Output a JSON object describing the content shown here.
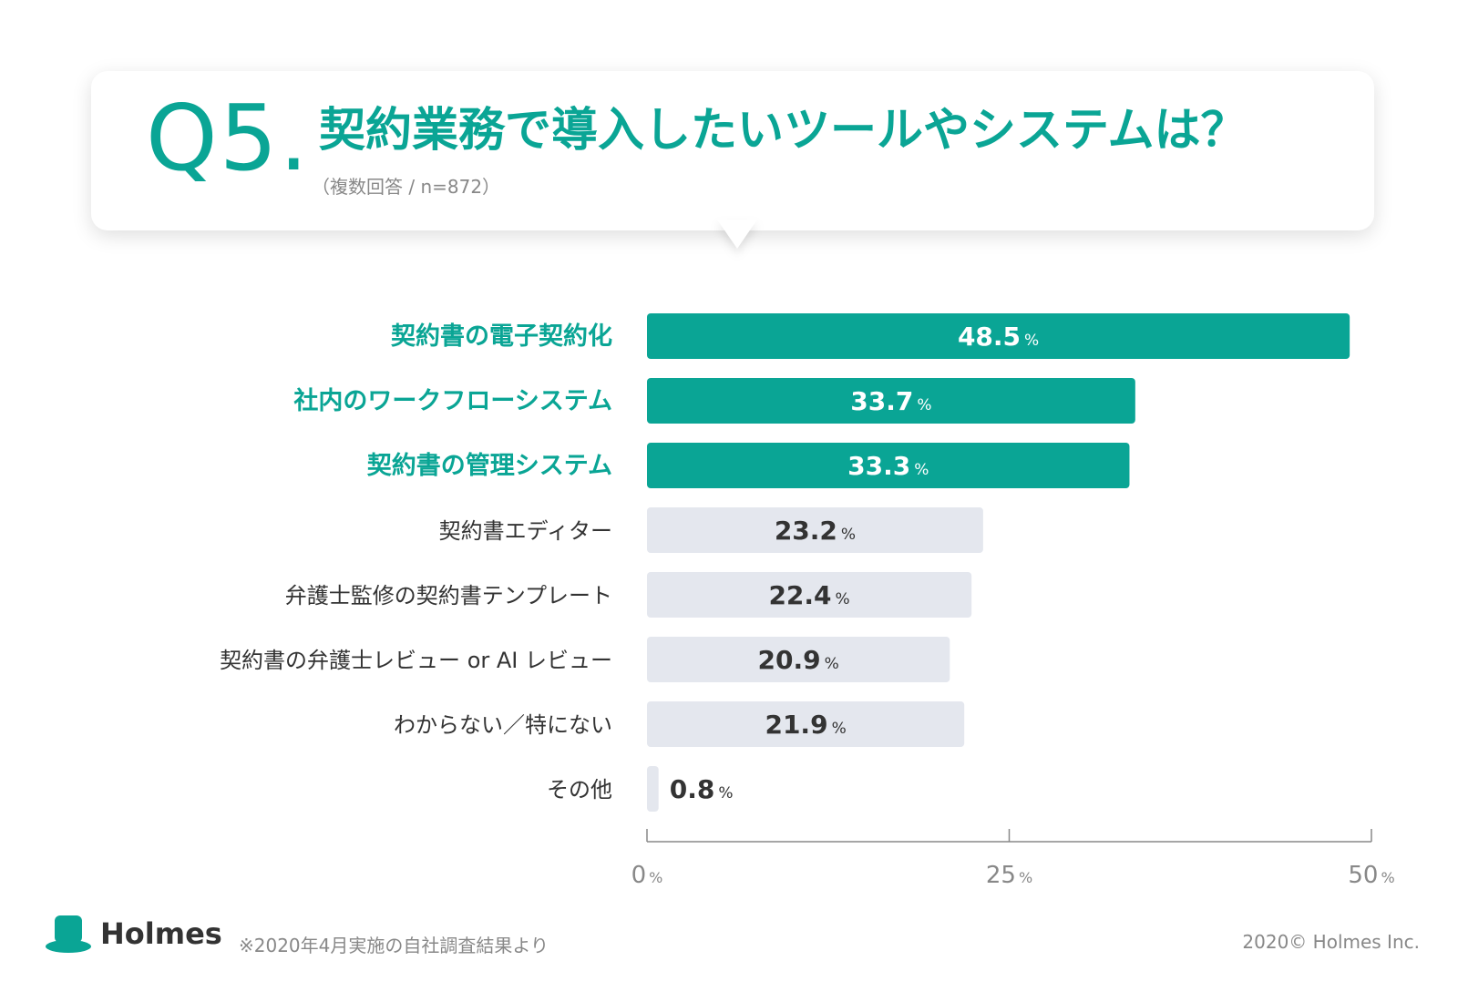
{
  "title": {
    "number": "Q5.",
    "question": "契約業務で導入したいツールやシステムは？",
    "subtitle": "（複数回答 / n=872）"
  },
  "colors": {
    "accent": "#0aa595",
    "bar_highlight": "#0aa595",
    "bar_normal": "#e4e7ee",
    "label_normal": "#333333",
    "axis": "#888888"
  },
  "chart_data": {
    "type": "bar",
    "orientation": "horizontal",
    "categories": [
      "契約書の電子契約化",
      "社内のワークフローシステム",
      "契約書の管理システム",
      "契約書エディター",
      "弁護士監修の契約書テンプレート",
      "契約書の弁護士レビュー or AI レビュー",
      "わからない／特にない",
      "その他"
    ],
    "values": [
      48.5,
      33.7,
      33.3,
      23.2,
      22.4,
      20.9,
      21.9,
      0.8
    ],
    "highlighted": [
      true,
      true,
      true,
      false,
      false,
      false,
      false,
      false
    ],
    "value_unit": "%",
    "xlim": [
      0,
      50
    ],
    "xticks": [
      0,
      25,
      50
    ],
    "xtick_unit": "%"
  },
  "footer": {
    "brand": "Holmes",
    "logo_icon": "top-hat-icon",
    "note": "※2020年4月実施の自社調査結果より",
    "copyright": "2020© Holmes Inc."
  }
}
